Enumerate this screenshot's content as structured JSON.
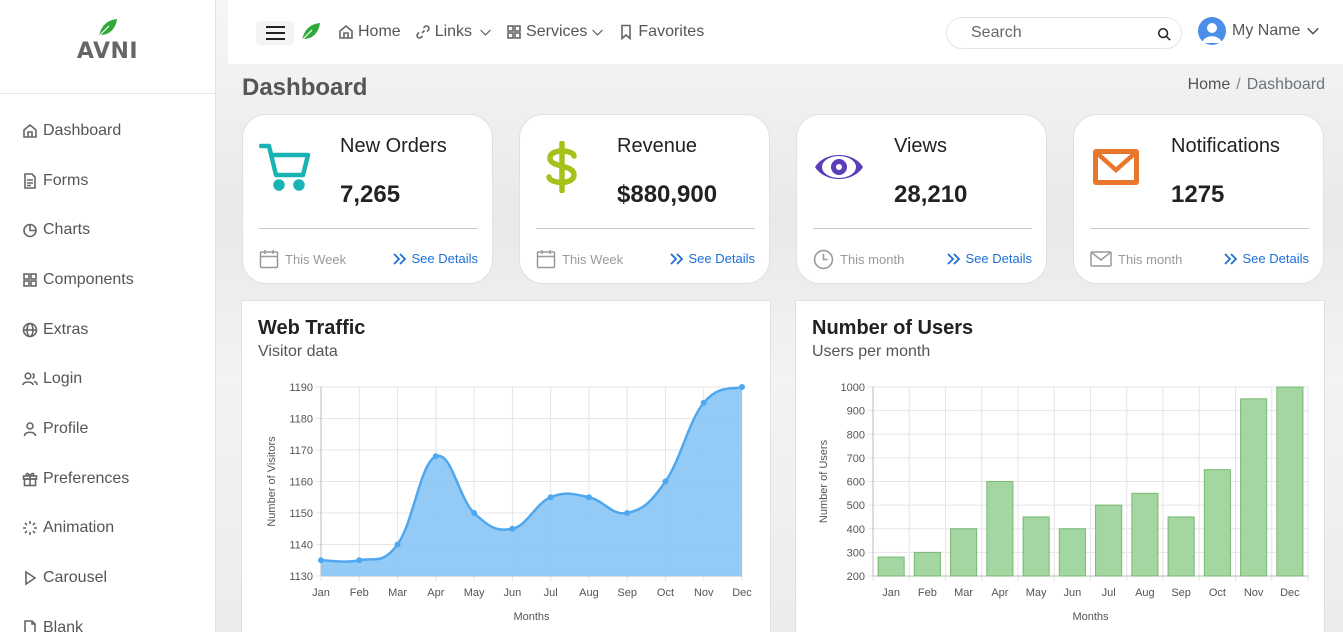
{
  "brand": {
    "name": "AVNI"
  },
  "sidebar": {
    "items": [
      {
        "label": "Dashboard",
        "icon": "home-icon"
      },
      {
        "label": "Forms",
        "icon": "file-icon"
      },
      {
        "label": "Charts",
        "icon": "pie-chart-icon"
      },
      {
        "label": "Components",
        "icon": "grid-icon"
      },
      {
        "label": "Extras",
        "icon": "globe-icon"
      },
      {
        "label": "Login",
        "icon": "users-icon"
      },
      {
        "label": "Profile",
        "icon": "user-icon"
      },
      {
        "label": "Preferences",
        "icon": "gift-icon"
      },
      {
        "label": "Animation",
        "icon": "loader-icon"
      },
      {
        "label": "Carousel",
        "icon": "play-icon"
      },
      {
        "label": "Blank",
        "icon": "blank-file-icon"
      }
    ]
  },
  "topbar": {
    "nav": [
      {
        "label": "Home",
        "icon": "home-icon",
        "dropdown": false
      },
      {
        "label": "Links",
        "icon": "link-icon",
        "dropdown": true
      },
      {
        "label": "Services",
        "icon": "grid-icon",
        "dropdown": true
      },
      {
        "label": "Favorites",
        "icon": "bookmark-icon",
        "dropdown": false
      }
    ],
    "search_placeholder": "Search",
    "user_name": "My Name"
  },
  "page": {
    "title": "Dashboard",
    "breadcrumb": {
      "home": "Home",
      "separator": "/",
      "current": "Dashboard"
    }
  },
  "cards": [
    {
      "label": "New Orders",
      "value": "7,265",
      "period": "This Week",
      "link": "See Details",
      "icon": "cart-icon",
      "period_icon": "calendar-icon",
      "color": "#1ab3b3"
    },
    {
      "label": "Revenue",
      "value": "$880,900",
      "period": "This Week",
      "link": "See Details",
      "icon": "dollar-icon",
      "period_icon": "calendar-icon",
      "color": "#a6c21a"
    },
    {
      "label": "Views",
      "value": "28,210",
      "period": "This month",
      "link": "See Details",
      "icon": "eye-icon",
      "period_icon": "clock-icon",
      "color": "#5b3db8"
    },
    {
      "label": "Notifications",
      "value": "1275",
      "period": "This month",
      "link": "See Details",
      "icon": "mail-icon",
      "period_icon": "mail-icon",
      "color": "#e8762b"
    }
  ],
  "panels": {
    "traffic": {
      "title": "Web Traffic",
      "subtitle": "Visitor data"
    },
    "users": {
      "title": "Number of Users",
      "subtitle": "Users per month"
    }
  },
  "chart_data": [
    {
      "type": "area",
      "title": "Web Traffic",
      "subtitle": "Visitor data",
      "xlabel": "Months",
      "ylabel": "Number of Visitors",
      "categories": [
        "Jan",
        "Feb",
        "Mar",
        "Apr",
        "May",
        "Jun",
        "Jul",
        "Aug",
        "Sep",
        "Oct",
        "Nov",
        "Dec"
      ],
      "values": [
        1135,
        1135,
        1140,
        1168,
        1150,
        1145,
        1155,
        1155,
        1150,
        1160,
        1185,
        1190
      ],
      "ylim": [
        1130,
        1190
      ],
      "yticks": [
        1130,
        1140,
        1150,
        1160,
        1170,
        1180,
        1190
      ],
      "color": "#4fa8ef",
      "fill": "#8ec8f6",
      "grid": true
    },
    {
      "type": "bar",
      "title": "Number of Users",
      "subtitle": "Users per month",
      "xlabel": "Months",
      "ylabel": "Number of Users",
      "categories": [
        "Jan",
        "Feb",
        "Mar",
        "Apr",
        "May",
        "Jun",
        "Jul",
        "Aug",
        "Sep",
        "Oct",
        "Nov",
        "Dec"
      ],
      "values": [
        280,
        300,
        400,
        600,
        450,
        400,
        500,
        550,
        450,
        650,
        950,
        1000
      ],
      "ylim": [
        200,
        1000
      ],
      "yticks": [
        200,
        300,
        400,
        500,
        600,
        700,
        800,
        900,
        1000
      ],
      "color": "#a3d6a0",
      "border": "#78b874",
      "grid": true
    }
  ]
}
